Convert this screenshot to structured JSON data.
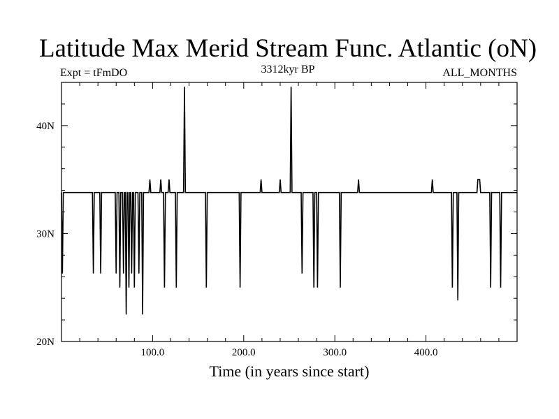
{
  "chart_data": {
    "type": "line",
    "title": "Latitude Max Merid Stream Func. Atlantic (oN)",
    "subtitle_left": "Expt = tFmDO",
    "subtitle_center": "3312kyr BP",
    "subtitle_right": "ALL_MONTHS",
    "xlabel": "Time (in years since start)",
    "ylabel": "",
    "xlim": [
      0,
      500
    ],
    "ylim": [
      20,
      44
    ],
    "x_ticks": [
      100,
      200,
      300,
      400
    ],
    "x_tick_labels": [
      "100.0",
      "200.0",
      "300.0",
      "400.0"
    ],
    "y_ticks": [
      20,
      30,
      40
    ],
    "y_tick_labels": [
      "20N",
      "30N",
      "40N"
    ],
    "baseline": 33.8,
    "series": [
      {
        "name": "Latitude Max",
        "color": "#000000",
        "points": [
          [
            0,
            33.8
          ],
          [
            1,
            26.3
          ],
          [
            2,
            33.8
          ],
          [
            34,
            33.8
          ],
          [
            35,
            26.3
          ],
          [
            36,
            33.8
          ],
          [
            42,
            33.8
          ],
          [
            43,
            26.3
          ],
          [
            44,
            33.8
          ],
          [
            59,
            33.8
          ],
          [
            60,
            26.3
          ],
          [
            61,
            33.8
          ],
          [
            63,
            33.8
          ],
          [
            64,
            25.0
          ],
          [
            65,
            33.8
          ],
          [
            67,
            33.8
          ],
          [
            68,
            26.3
          ],
          [
            69,
            33.8
          ],
          [
            70,
            33.8
          ],
          [
            71,
            22.5
          ],
          [
            72,
            33.8
          ],
          [
            73,
            33.8
          ],
          [
            74,
            25.0
          ],
          [
            75,
            33.8
          ],
          [
            76,
            33.8
          ],
          [
            77,
            26.3
          ],
          [
            78,
            33.8
          ],
          [
            79,
            33.8
          ],
          [
            80,
            25.0
          ],
          [
            81,
            33.8
          ],
          [
            84,
            33.8
          ],
          [
            85,
            26.3
          ],
          [
            86,
            33.8
          ],
          [
            88,
            33.8
          ],
          [
            89,
            22.5
          ],
          [
            90,
            33.8
          ],
          [
            96,
            33.8
          ],
          [
            97,
            35.0
          ],
          [
            98,
            33.8
          ],
          [
            108,
            33.8
          ],
          [
            109,
            35.0
          ],
          [
            110,
            33.8
          ],
          [
            112,
            33.8
          ],
          [
            113,
            25.0
          ],
          [
            114,
            33.8
          ],
          [
            117,
            33.8
          ],
          [
            118,
            35.0
          ],
          [
            119,
            33.8
          ],
          [
            125,
            33.8
          ],
          [
            126,
            25.0
          ],
          [
            127,
            33.8
          ],
          [
            134,
            33.8
          ],
          [
            135,
            43.6
          ],
          [
            136,
            33.8
          ],
          [
            158,
            33.8
          ],
          [
            159,
            25.0
          ],
          [
            160,
            33.8
          ],
          [
            195,
            33.8
          ],
          [
            196,
            25.0
          ],
          [
            197,
            33.8
          ],
          [
            218,
            33.8
          ],
          [
            219,
            35.0
          ],
          [
            220,
            33.8
          ],
          [
            239,
            33.8
          ],
          [
            240,
            35.0
          ],
          [
            241,
            33.8
          ],
          [
            251,
            33.8
          ],
          [
            252,
            43.6
          ],
          [
            253,
            33.8
          ],
          [
            263,
            33.8
          ],
          [
            264,
            26.3
          ],
          [
            265,
            33.8
          ],
          [
            276,
            33.8
          ],
          [
            277,
            25.0
          ],
          [
            278,
            33.8
          ],
          [
            280,
            33.8
          ],
          [
            281,
            25.0
          ],
          [
            282,
            33.8
          ],
          [
            305,
            33.8
          ],
          [
            306,
            25.0
          ],
          [
            307,
            33.8
          ],
          [
            325,
            33.8
          ],
          [
            326,
            35.0
          ],
          [
            327,
            33.8
          ],
          [
            406,
            33.8
          ],
          [
            407,
            35.0
          ],
          [
            408,
            33.8
          ],
          [
            428,
            33.8
          ],
          [
            429,
            25.0
          ],
          [
            430,
            33.8
          ],
          [
            434,
            33.8
          ],
          [
            435,
            23.8
          ],
          [
            436,
            33.8
          ],
          [
            456,
            33.8
          ],
          [
            457,
            35.0
          ],
          [
            459,
            35.0
          ],
          [
            460,
            33.8
          ],
          [
            470,
            33.8
          ],
          [
            471,
            25.0
          ],
          [
            472,
            33.8
          ],
          [
            481,
            33.8
          ],
          [
            482,
            25.0
          ],
          [
            483,
            33.8
          ],
          [
            500,
            33.8
          ]
        ]
      }
    ]
  }
}
